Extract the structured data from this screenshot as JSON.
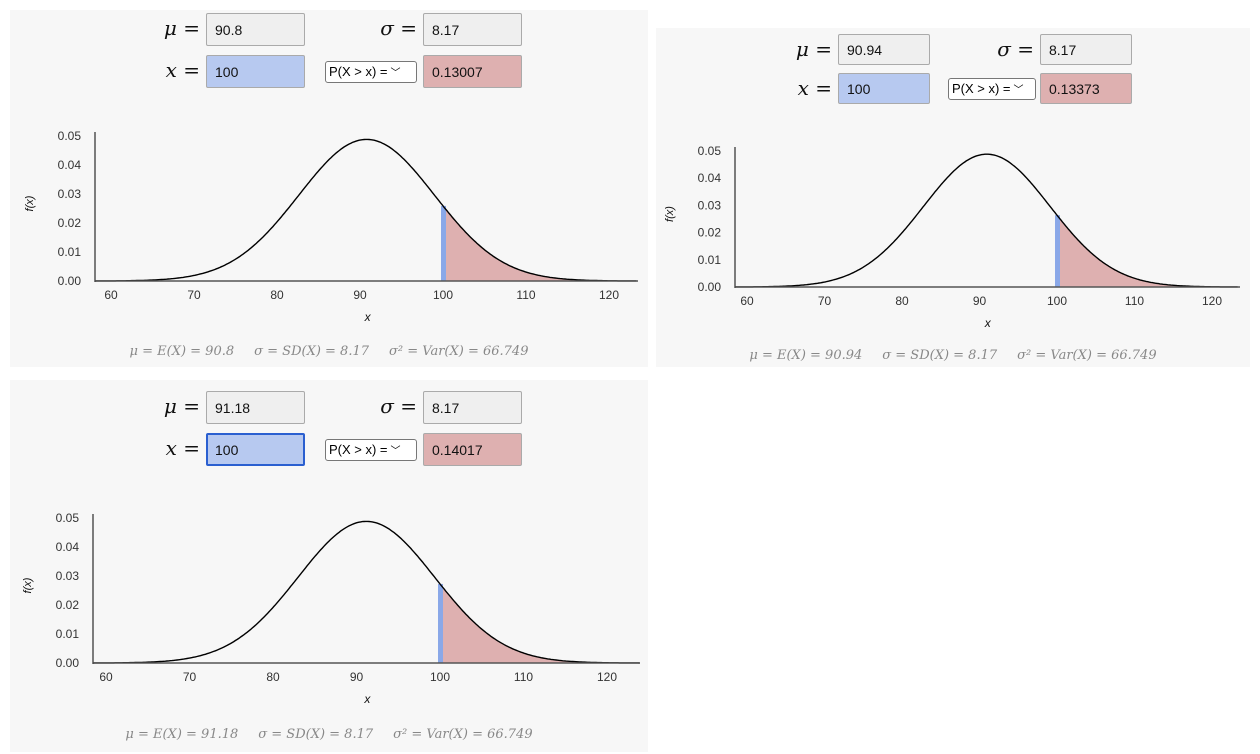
{
  "panels": [
    {
      "mu_label": "μ =",
      "mu": "90.8",
      "sigma_label": "σ =",
      "sigma": "8.17",
      "x_label": "x =",
      "x": "100",
      "select": "P(X > x) =",
      "result": "0.13007",
      "footer": [
        "μ = E(X) = 90.8",
        "σ = SD(X) = 8.17",
        "σ² = Var(X) = 66.749"
      ],
      "chart_data": {
        "type": "area",
        "title": "",
        "xlabel": "x",
        "ylabel": "f(x)",
        "mean": 90.8,
        "sd": 8.17,
        "shade_from": 100,
        "shade_direction": "right",
        "xlim": [
          58.1,
          123.5
        ],
        "ylim": [
          0,
          0.05
        ],
        "xticks": [
          "60",
          "70",
          "80",
          "90",
          "100",
          "110",
          "120"
        ],
        "yticks": [
          "0.00",
          "0.01",
          "0.02",
          "0.03",
          "0.04",
          "0.05"
        ]
      }
    },
    {
      "mu_label": "μ =",
      "mu": "90.94",
      "sigma_label": "σ =",
      "sigma": "8.17",
      "x_label": "x =",
      "x": "100",
      "select": "P(X > x) =",
      "result": "0.13373",
      "footer": [
        "μ = E(X) = 90.94",
        "σ = SD(X) = 8.17",
        "σ² = Var(X) = 66.749"
      ],
      "chart_data": {
        "type": "area",
        "title": "",
        "xlabel": "x",
        "ylabel": "f(x)",
        "mean": 90.94,
        "sd": 8.17,
        "shade_from": 100,
        "shade_direction": "right",
        "xlim": [
          58.5,
          123.5
        ],
        "ylim": [
          0,
          0.05
        ],
        "xticks": [
          "60",
          "70",
          "80",
          "90",
          "100",
          "110",
          "120"
        ],
        "yticks": [
          "0.00",
          "0.01",
          "0.02",
          "0.03",
          "0.04",
          "0.05"
        ]
      }
    },
    {
      "mu_label": "μ =",
      "mu": "91.18",
      "sigma_label": "σ =",
      "sigma": "8.17",
      "x_label": "x =",
      "x": "100",
      "select": "P(X > x) =",
      "result": "0.14017",
      "footer": [
        "μ = E(X) = 91.18",
        "σ = SD(X) = 8.17",
        "σ² = Var(X) = 66.749"
      ],
      "chart_data": {
        "type": "area",
        "title": "",
        "xlabel": "x",
        "ylabel": "f(x)",
        "mean": 91.18,
        "sd": 8.17,
        "shade_from": 100,
        "shade_direction": "right",
        "xlim": [
          58.5,
          124.0
        ],
        "ylim": [
          0,
          0.05
        ],
        "xticks": [
          "60",
          "70",
          "80",
          "90",
          "100",
          "110",
          "120"
        ],
        "yticks": [
          "0.00",
          "0.01",
          "0.02",
          "0.03",
          "0.04",
          "0.05"
        ]
      }
    }
  ],
  "colors": {
    "x_field": "#b7c9f0",
    "result_field": "#deb0b0",
    "shade": "#deb0b0",
    "x_marker": "#8aa8e8"
  }
}
